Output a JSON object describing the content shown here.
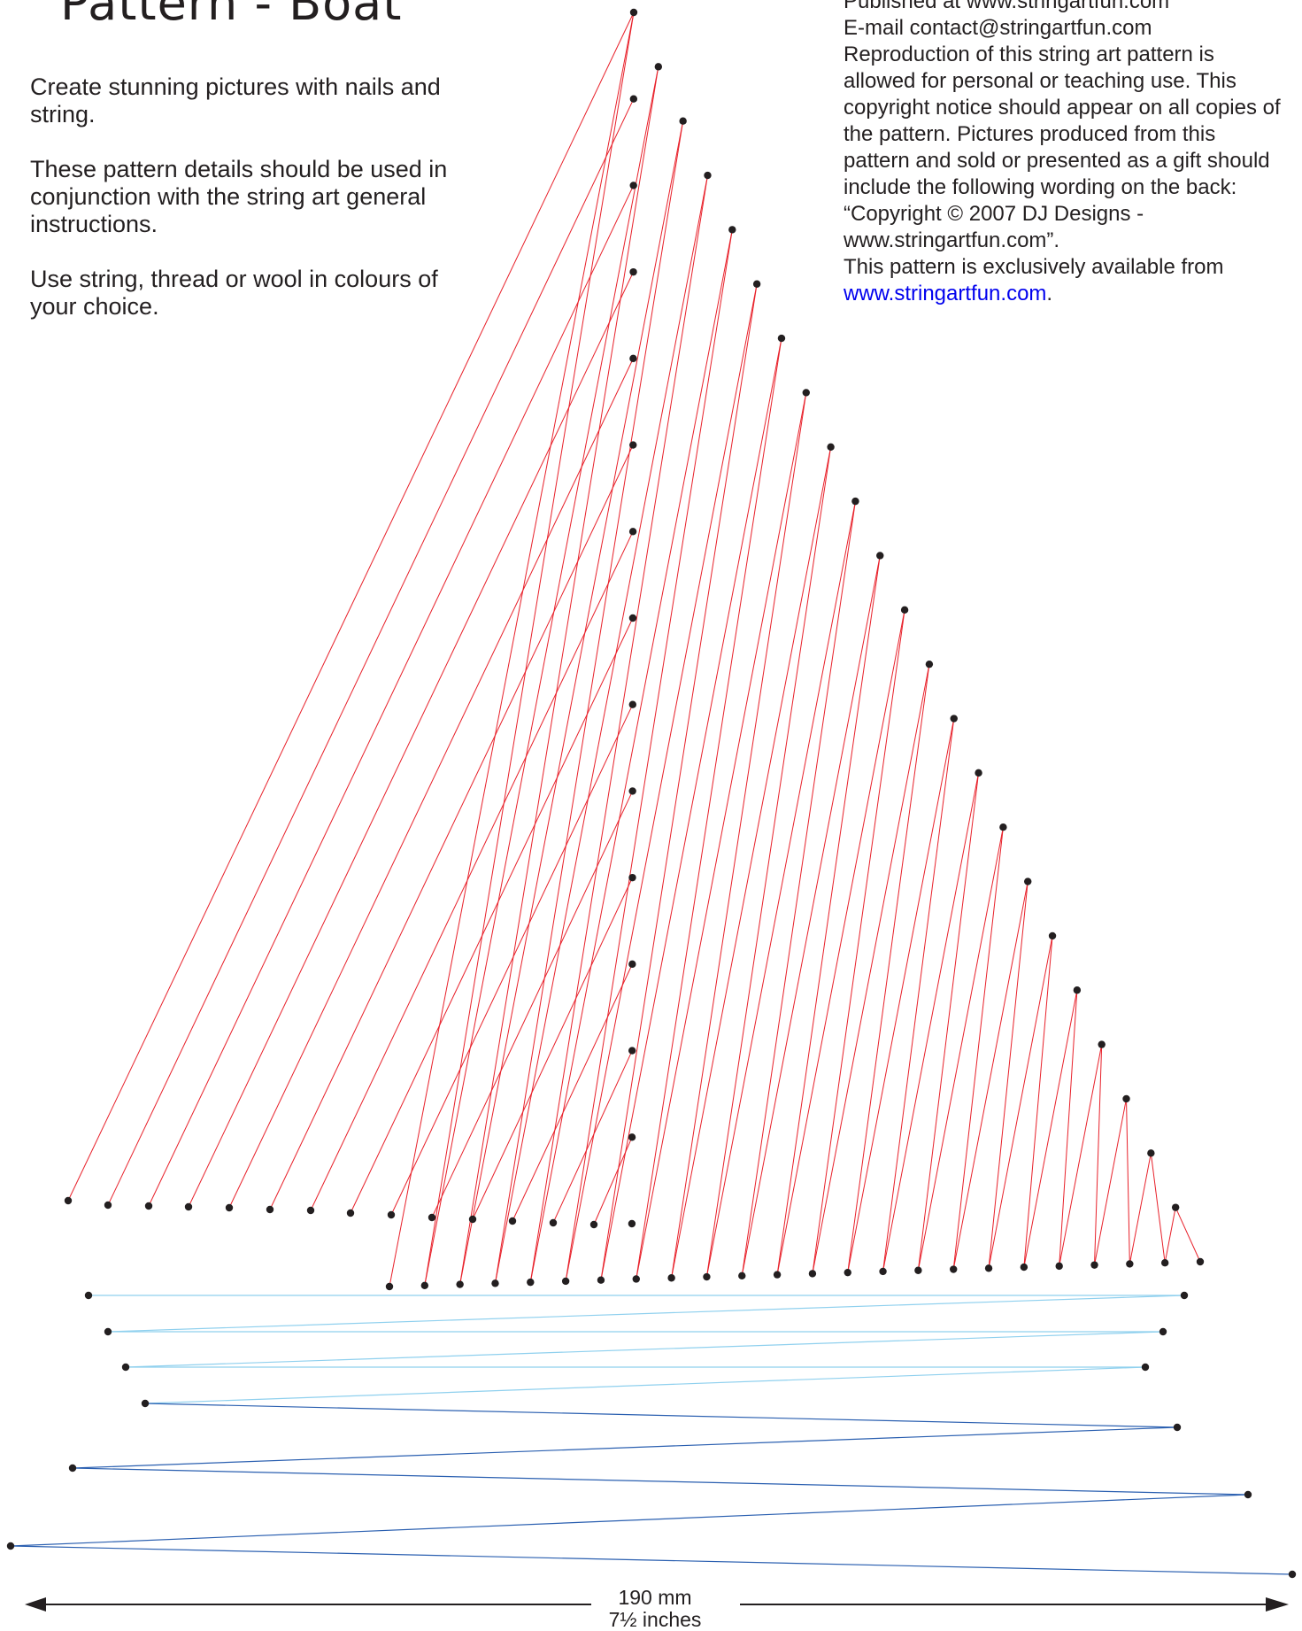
{
  "title": "Pattern - Boat",
  "intro": [
    "Create stunning pictures with nails and string.",
    "These pattern details should be used in conjunction with the string art general instructions.",
    "Use string, thread or wool in colours of your choice."
  ],
  "copyright": {
    "line1": "Published at www.stringartfun.com",
    "line2": "E-mail contact@stringartfun.com",
    "body": "Reproduction of this string art pattern is allowed for personal or teaching use. This copyright notice should appear on all copies of the pattern. Pictures produced from this pattern and sold or presented as a gift should include the following wording on the back:",
    "quote": "“Copyright © 2007 DJ Designs - www.stringartfun.com”.",
    "availability": "This pattern is exclusively available from",
    "link": "www.stringartfun.com",
    "link_end": "."
  },
  "dimension": {
    "metric": "190 mm",
    "imperial": "7½ inches"
  },
  "colors": {
    "sail_thread": "#e8202a",
    "hull_light_thread": "#8fd0ee",
    "hull_dark_thread": "#2a5fb0",
    "nail": "#231f20",
    "arrow": "#231f20",
    "link": "#0000ee"
  }
}
